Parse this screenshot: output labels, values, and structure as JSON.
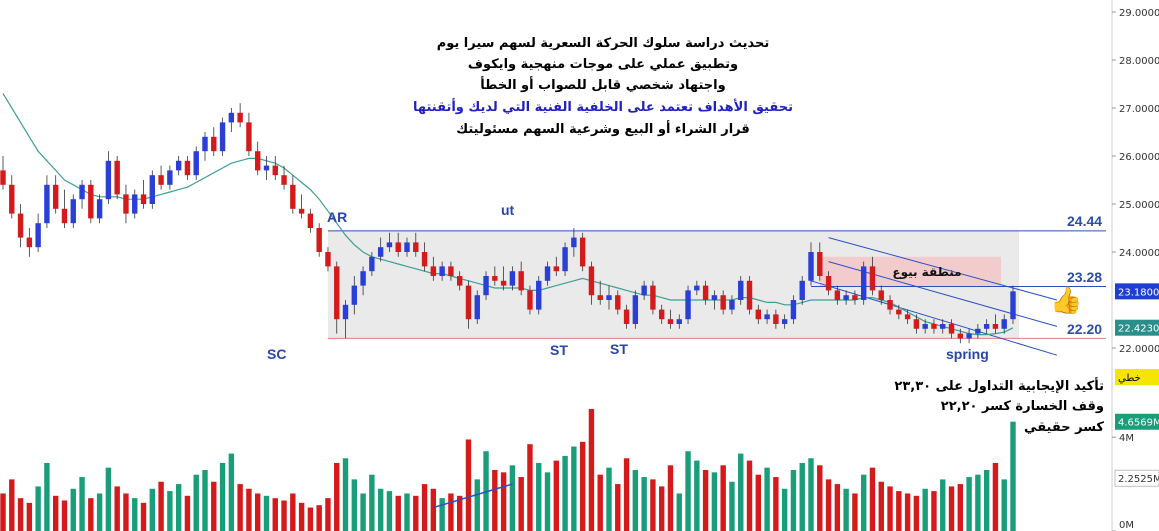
{
  "title_lines": [
    {
      "text": "تحديث دراسة سلوك الحركة السعرية لسهم سيرا يوم",
      "color": "#000000"
    },
    {
      "text": "وتطبيق عملي على موجات منهجية وايكوف",
      "color": "#000000"
    },
    {
      "text": "واجتهاد شخصي قابل للصواب أو الخطأ",
      "color": "#000000"
    },
    {
      "text": "تحقيق الأهداف تعتمد على الخلفية الفنية التي لديك وأتقنتها",
      "color": "#2020c0"
    },
    {
      "text": "قرار الشراء أو البيع وشرعية السهم مسئوليتك",
      "color": "#000000"
    }
  ],
  "notes": [
    "تأكيد الإيجابية التداول على ٢٣,٣٠",
    "وقف الخسارة كسر ٢٢,٢٠",
    "كسر حقيقي"
  ],
  "wyckoff_labels": {
    "sc": "SC",
    "ar": "AR",
    "ut": "ut",
    "st1": "ST",
    "st2": "ST",
    "spring": "spring"
  },
  "zone_label": "منطقة بيوع",
  "levels": {
    "resistance": "24.44",
    "breakout": "23.28",
    "support": "22.20"
  },
  "axis_ticks": [
    "29.0000",
    "28.0000",
    "27.0000",
    "26.0000",
    "25.0000",
    "24.0000",
    "22.0000"
  ],
  "price_tags": [
    {
      "text": "23.1800",
      "color": "#1f3fd0",
      "text_color": "#ffffff"
    },
    {
      "text": "22.4230",
      "color": "#2a8f8a",
      "text_color": "#ffffff"
    },
    {
      "text": "خطي",
      "color": "#f4e600",
      "text_color": "#000000"
    },
    {
      "text": "4.6569M",
      "color": "#1a9e7a",
      "text_color": "#ffffff"
    },
    {
      "text": "2.2525M",
      "color": "#ffffff",
      "text_color": "#333333"
    }
  ],
  "volume_ticks": [
    "4M",
    "0M"
  ],
  "colors": {
    "up": "#2a3fd6",
    "down": "#d41a1a",
    "ma": "#3e9e96",
    "range_fill": "#eaeaea",
    "zone_fill": "#f3c6c8",
    "support_line": "#e87c7c",
    "channel": "#2b4fc2",
    "vol_up": "#1a9e7a",
    "vol_down": "#d41a1a"
  },
  "chart_data": {
    "type": "candlestick",
    "title": "",
    "ylim": [
      21.6,
      29.1
    ],
    "y_ticks": [
      22,
      24,
      25,
      26,
      27,
      28,
      29
    ],
    "candles": [
      [
        25.7,
        26.0,
        25.3,
        25.4
      ],
      [
        25.4,
        25.6,
        24.7,
        24.8
      ],
      [
        24.8,
        25.0,
        24.1,
        24.3
      ],
      [
        24.3,
        24.5,
        23.9,
        24.1
      ],
      [
        24.1,
        24.8,
        24.0,
        24.6
      ],
      [
        24.6,
        25.6,
        24.5,
        25.4
      ],
      [
        25.4,
        25.6,
        24.8,
        24.9
      ],
      [
        24.9,
        25.3,
        24.5,
        24.6
      ],
      [
        24.6,
        25.2,
        24.5,
        25.1
      ],
      [
        25.1,
        25.5,
        24.9,
        25.4
      ],
      [
        25.4,
        25.5,
        24.6,
        24.7
      ],
      [
        24.7,
        25.2,
        24.6,
        25.1
      ],
      [
        25.1,
        26.1,
        25.0,
        25.9
      ],
      [
        25.9,
        26.0,
        25.1,
        25.2
      ],
      [
        25.2,
        25.4,
        24.6,
        24.8
      ],
      [
        24.8,
        25.3,
        24.7,
        25.2
      ],
      [
        25.2,
        25.5,
        24.9,
        25.0
      ],
      [
        25.0,
        25.7,
        24.9,
        25.6
      ],
      [
        25.6,
        25.8,
        25.3,
        25.4
      ],
      [
        25.4,
        25.8,
        25.3,
        25.7
      ],
      [
        25.7,
        26.0,
        25.6,
        25.9
      ],
      [
        25.9,
        26.0,
        25.5,
        25.6
      ],
      [
        25.6,
        26.2,
        25.5,
        26.1
      ],
      [
        26.1,
        26.5,
        25.9,
        26.4
      ],
      [
        26.4,
        26.6,
        26.0,
        26.1
      ],
      [
        26.1,
        26.8,
        26.0,
        26.7
      ],
      [
        26.7,
        27.0,
        26.5,
        26.9
      ],
      [
        26.9,
        27.1,
        26.6,
        26.7
      ],
      [
        26.7,
        26.9,
        26.0,
        26.1
      ],
      [
        26.1,
        26.3,
        25.6,
        25.7
      ],
      [
        25.7,
        26.0,
        25.5,
        25.8
      ],
      [
        25.8,
        26.0,
        25.5,
        25.6
      ],
      [
        25.6,
        25.8,
        25.3,
        25.4
      ],
      [
        25.4,
        25.6,
        24.8,
        24.9
      ],
      [
        24.9,
        25.2,
        24.7,
        24.8
      ],
      [
        24.8,
        24.9,
        24.4,
        24.5
      ],
      [
        24.5,
        24.6,
        23.9,
        24.0
      ],
      [
        24.0,
        24.1,
        23.6,
        23.7
      ],
      [
        23.7,
        23.8,
        22.3,
        22.6
      ],
      [
        22.6,
        23.0,
        22.2,
        22.9
      ],
      [
        22.9,
        23.5,
        22.7,
        23.3
      ],
      [
        23.3,
        23.7,
        23.1,
        23.6
      ],
      [
        23.6,
        24.0,
        23.5,
        23.9
      ],
      [
        23.9,
        24.3,
        23.8,
        24.1
      ],
      [
        24.1,
        24.4,
        24.0,
        24.2
      ],
      [
        24.2,
        24.4,
        23.9,
        24.0
      ],
      [
        24.0,
        24.3,
        23.9,
        24.2
      ],
      [
        24.2,
        24.4,
        23.9,
        24.0
      ],
      [
        24.0,
        24.2,
        23.6,
        23.7
      ],
      [
        23.7,
        23.9,
        23.4,
        23.5
      ],
      [
        23.5,
        23.8,
        23.4,
        23.7
      ],
      [
        23.7,
        23.8,
        23.4,
        23.5
      ],
      [
        23.5,
        23.6,
        23.2,
        23.3
      ],
      [
        23.3,
        23.4,
        22.4,
        22.6
      ],
      [
        22.6,
        23.2,
        22.5,
        23.1
      ],
      [
        23.1,
        23.6,
        23.0,
        23.5
      ],
      [
        23.5,
        23.7,
        23.3,
        23.4
      ],
      [
        23.4,
        23.7,
        23.2,
        23.3
      ],
      [
        23.3,
        23.7,
        23.2,
        23.6
      ],
      [
        23.6,
        23.8,
        23.1,
        23.2
      ],
      [
        23.2,
        23.3,
        22.7,
        22.8
      ],
      [
        22.8,
        23.5,
        22.7,
        23.4
      ],
      [
        23.4,
        23.8,
        23.3,
        23.7
      ],
      [
        23.7,
        23.9,
        23.5,
        23.6
      ],
      [
        23.6,
        24.2,
        23.5,
        24.1
      ],
      [
        24.1,
        24.5,
        23.9,
        24.3
      ],
      [
        24.3,
        24.4,
        23.6,
        23.7
      ],
      [
        23.7,
        23.8,
        22.9,
        23.1
      ],
      [
        23.1,
        23.4,
        22.9,
        23.0
      ],
      [
        23.0,
        23.3,
        22.8,
        23.1
      ],
      [
        23.1,
        23.2,
        22.7,
        22.8
      ],
      [
        22.8,
        22.9,
        22.4,
        22.5
      ],
      [
        22.5,
        23.2,
        22.4,
        23.1
      ],
      [
        23.1,
        23.4,
        23.0,
        23.3
      ],
      [
        23.3,
        23.4,
        22.7,
        22.8
      ],
      [
        22.8,
        22.9,
        22.5,
        22.6
      ],
      [
        22.6,
        22.8,
        22.4,
        22.5
      ],
      [
        22.5,
        22.7,
        22.4,
        22.6
      ],
      [
        22.6,
        23.3,
        22.5,
        23.2
      ],
      [
        23.2,
        23.4,
        23.1,
        23.3
      ],
      [
        23.3,
        23.4,
        22.9,
        23.0
      ],
      [
        23.0,
        23.2,
        22.8,
        23.1
      ],
      [
        23.1,
        23.2,
        22.7,
        22.8
      ],
      [
        22.8,
        23.1,
        22.7,
        23.0
      ],
      [
        23.0,
        23.5,
        22.9,
        23.4
      ],
      [
        23.4,
        23.5,
        22.7,
        22.8
      ],
      [
        22.8,
        22.9,
        22.5,
        22.6
      ],
      [
        22.6,
        22.8,
        22.5,
        22.7
      ],
      [
        22.7,
        22.8,
        22.4,
        22.5
      ],
      [
        22.5,
        22.7,
        22.4,
        22.6
      ],
      [
        22.6,
        23.1,
        22.5,
        23.0
      ],
      [
        23.0,
        23.5,
        22.9,
        23.4
      ],
      [
        23.4,
        24.2,
        23.3,
        24.0
      ],
      [
        24.0,
        24.2,
        23.4,
        23.5
      ],
      [
        23.5,
        23.6,
        23.1,
        23.2
      ],
      [
        23.2,
        23.3,
        22.9,
        23.0
      ],
      [
        23.0,
        23.2,
        22.9,
        23.1
      ],
      [
        23.1,
        23.2,
        22.9,
        23.0
      ],
      [
        23.0,
        23.8,
        22.9,
        23.7
      ],
      [
        23.7,
        23.9,
        23.1,
        23.2
      ],
      [
        23.2,
        23.3,
        22.9,
        23.0
      ],
      [
        23.0,
        23.1,
        22.7,
        22.8
      ],
      [
        22.8,
        22.9,
        22.6,
        22.7
      ],
      [
        22.7,
        22.8,
        22.5,
        22.6
      ],
      [
        22.6,
        22.7,
        22.3,
        22.4
      ],
      [
        22.4,
        22.6,
        22.3,
        22.5
      ],
      [
        22.5,
        22.6,
        22.3,
        22.4
      ],
      [
        22.4,
        22.6,
        22.3,
        22.5
      ],
      [
        22.5,
        22.6,
        22.2,
        22.3
      ],
      [
        22.3,
        22.4,
        22.1,
        22.2
      ],
      [
        22.2,
        22.4,
        22.1,
        22.3
      ],
      [
        22.3,
        22.5,
        22.2,
        22.4
      ],
      [
        22.4,
        22.6,
        22.3,
        22.5
      ],
      [
        22.5,
        22.7,
        22.3,
        22.4
      ],
      [
        22.4,
        22.7,
        22.3,
        22.6
      ],
      [
        22.6,
        23.3,
        22.5,
        23.18
      ]
    ],
    "moving_average": [
      27.3,
      27.0,
      26.7,
      26.4,
      26.1,
      25.9,
      25.7,
      25.5,
      25.4,
      25.3,
      25.2,
      25.15,
      25.15,
      25.15,
      25.1,
      25.1,
      25.1,
      25.15,
      25.2,
      25.25,
      25.3,
      25.35,
      25.45,
      25.55,
      25.65,
      25.75,
      25.85,
      25.9,
      25.95,
      25.95,
      25.9,
      25.85,
      25.75,
      25.6,
      25.45,
      25.3,
      25.1,
      24.85,
      24.6,
      24.35,
      24.15,
      24.0,
      23.9,
      23.85,
      23.8,
      23.75,
      23.7,
      23.65,
      23.6,
      23.55,
      23.55,
      23.5,
      23.45,
      23.4,
      23.35,
      23.3,
      23.25,
      23.25,
      23.25,
      23.25,
      23.2,
      23.2,
      23.25,
      23.3,
      23.35,
      23.4,
      23.45,
      23.4,
      23.35,
      23.3,
      23.25,
      23.2,
      23.15,
      23.1,
      23.1,
      23.05,
      23.0,
      23.0,
      23.0,
      23.0,
      23.0,
      23.0,
      23.0,
      23.0,
      23.05,
      23.05,
      23.0,
      22.95,
      22.95,
      22.9,
      22.9,
      22.95,
      23.0,
      23.0,
      23.0,
      23.0,
      23.0,
      23.0,
      23.05,
      23.05,
      23.0,
      22.95,
      22.85,
      22.75,
      22.65,
      22.55,
      22.5,
      22.45,
      22.4,
      22.35,
      22.3,
      22.28,
      22.28,
      22.3,
      22.33,
      22.42
    ],
    "volume_ylim": [
      0,
      5.2
    ],
    "volumes": [
      1.6,
      2.2,
      1.4,
      1.2,
      1.9,
      2.9,
      1.5,
      1.3,
      1.8,
      2.3,
      1.4,
      1.6,
      2.7,
      1.9,
      1.6,
      1.4,
      1.2,
      1.8,
      2.1,
      1.7,
      2.0,
      1.5,
      2.4,
      2.6,
      2.1,
      2.9,
      3.3,
      2.0,
      1.8,
      1.6,
      1.5,
      1.4,
      1.3,
      1.6,
      1.2,
      1.0,
      1.1,
      1.4,
      2.9,
      3.1,
      2.2,
      1.6,
      2.4,
      1.8,
      1.7,
      1.5,
      1.6,
      1.5,
      2.0,
      1.8,
      1.4,
      1.6,
      1.5,
      3.9,
      2.2,
      3.4,
      2.6,
      2.5,
      2.8,
      2.3,
      3.7,
      2.9,
      2.5,
      3.0,
      3.2,
      3.6,
      3.8,
      5.2,
      2.4,
      2.7,
      2.0,
      3.1,
      2.6,
      2.3,
      2.2,
      1.9,
      2.8,
      1.6,
      3.4,
      3.0,
      2.6,
      2.5,
      2.8,
      2.1,
      3.3,
      3.0,
      2.4,
      2.7,
      2.3,
      1.8,
      2.6,
      2.9,
      3.1,
      2.8,
      2.2,
      2.0,
      1.8,
      1.6,
      2.4,
      2.7,
      2.1,
      1.9,
      1.7,
      1.6,
      1.5,
      1.8,
      1.7,
      2.2,
      1.9,
      2.0,
      2.3,
      2.4,
      2.6,
      2.9,
      2.2,
      4.66
    ],
    "volume_trend_line": [
      [
        49,
        1.0
      ],
      [
        58,
        2.0
      ]
    ],
    "annotations": {
      "resistance": 24.44,
      "breakout": 23.28,
      "support": 22.2,
      "last_price": 23.18,
      "ma_last": 22.423
    }
  }
}
